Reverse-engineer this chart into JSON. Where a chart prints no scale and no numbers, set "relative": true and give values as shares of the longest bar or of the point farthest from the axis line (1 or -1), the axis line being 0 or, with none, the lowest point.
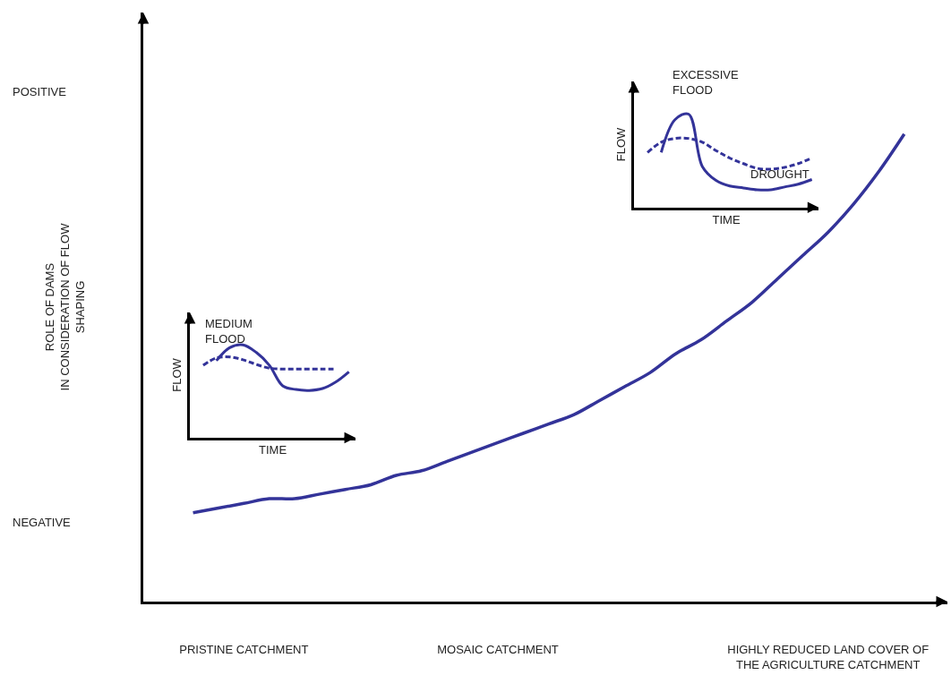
{
  "chart_data": [
    {
      "type": "line",
      "relative": true,
      "ylabel": "ROLE OF DAMS\nIN CONSIDERATION OF FLOW\nSHAPING",
      "annotations": [
        "POSITIVE",
        "NEGATIVE"
      ],
      "categories": [
        null,
        null,
        "PRISTINE CATCHMENT",
        null,
        null,
        null,
        null,
        null,
        null,
        null,
        null,
        null,
        "MOSAIC CATCHMENT",
        null,
        null,
        null,
        null,
        null,
        null,
        null,
        null,
        null,
        null,
        null,
        null,
        "HIGHLY REDUCED LAND COVER OF\nTHE AGRICULTURE CATCHMENT",
        null,
        null,
        null
      ],
      "series": [
        {
          "color": "#333399",
          "values": [
            0.19,
            0.2,
            0.21,
            0.22,
            0.22,
            0.23,
            0.24,
            0.25,
            0.27,
            0.28,
            0.3,
            0.32,
            0.34,
            0.36,
            0.38,
            0.4,
            0.43,
            0.46,
            0.49,
            0.53,
            0.56,
            0.6,
            0.64,
            0.69,
            0.74,
            0.79,
            0.85,
            0.92,
            1.0
          ]
        }
      ],
      "tick_labels": "x",
      "marker": "none",
      "line_style": "solid"
    },
    {
      "type": "line",
      "relative": true,
      "xlabel": "TIME",
      "ylabel": "FLOW",
      "annotations": [
        "MEDIUM\nFLOOD"
      ],
      "categories": [
        null,
        null,
        null,
        null,
        null,
        null,
        null,
        null,
        null,
        null,
        null,
        null
      ],
      "series": [
        {
          "color": "#333399",
          "line_style": "solid",
          "values": [
            null,
            0.83,
            0.97,
            1.0,
            0.92,
            0.78,
            0.56,
            0.52,
            0.51,
            0.53,
            0.6,
            0.71
          ]
        },
        {
          "color": "#333399",
          "line_style": "dashed",
          "values": [
            0.78,
            0.86,
            0.87,
            0.84,
            0.79,
            0.75,
            0.74,
            0.74,
            0.74,
            0.74,
            0.74,
            null
          ]
        }
      ],
      "tick_labels": false,
      "marker": "none"
    },
    {
      "type": "line",
      "relative": true,
      "xlabel": "TIME",
      "ylabel": "FLOW",
      "annotations": [
        "EXCESSIVE\nFLOOD",
        "DROUGHT"
      ],
      "categories": [
        null,
        null,
        null,
        null,
        null,
        null,
        null,
        null,
        null,
        null,
        null,
        null,
        null
      ],
      "series": [
        {
          "color": "#333399",
          "line_style": "solid",
          "values": [
            null,
            0.59,
            0.94,
            1.0,
            0.44,
            0.29,
            0.23,
            0.21,
            0.19,
            0.19,
            0.22,
            0.25,
            0.3
          ]
        },
        {
          "color": "#333399",
          "line_style": "dashed",
          "values": [
            0.59,
            0.7,
            0.74,
            0.74,
            0.7,
            0.61,
            0.53,
            0.47,
            0.42,
            0.41,
            0.43,
            0.47,
            0.53
          ]
        }
      ],
      "tick_labels": false,
      "marker": "none"
    }
  ]
}
